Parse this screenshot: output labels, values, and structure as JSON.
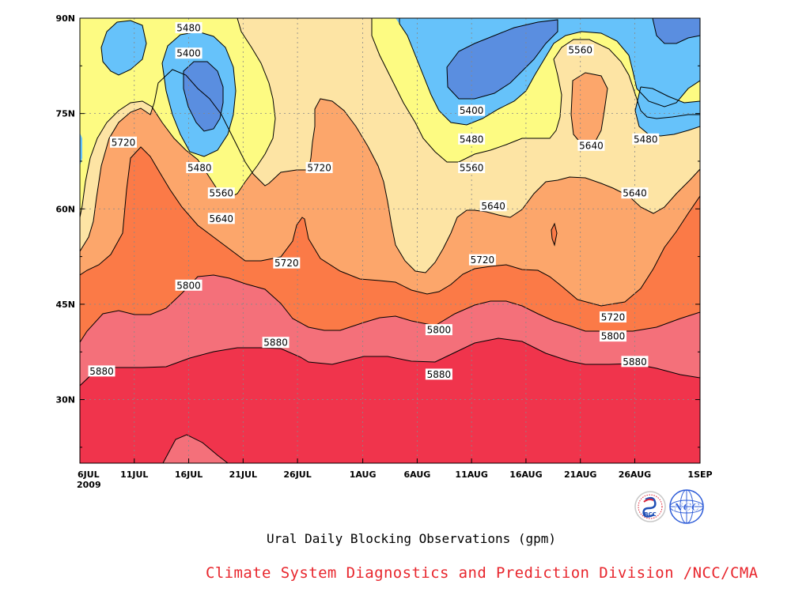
{
  "chart_data": {
    "type": "contour",
    "title": "Ural Daily Blocking Observations (gpm)",
    "x_ticks": [
      "6JUL",
      "11JUL",
      "16JUL",
      "21JUL",
      "26JUL",
      "1AUG",
      "6AUG",
      "11AUG",
      "16AUG",
      "21AUG",
      "26AUG",
      "1SEP"
    ],
    "x_sub_label": "2009",
    "x_range": [
      "2009-07-06",
      "2009-09-01"
    ],
    "y_ticks": [
      "30N",
      "45N",
      "60N",
      "75N",
      "90N"
    ],
    "y_range": [
      20,
      90
    ],
    "contour_levels": [
      5400,
      5480,
      5560,
      5640,
      5720,
      5800,
      5880
    ],
    "colors": {
      "below_5400": "#5a8ee0",
      "5400_5480": "#66c2fa",
      "5480_5560": "#fdfb82",
      "5560_5640": "#fde4a4",
      "5640_5720": "#fca66b",
      "5720_5800": "#fb7a47",
      "5800_5880": "#f4707a",
      "above_5880": "#f0344c"
    },
    "contour_labels": [
      {
        "text": "5480",
        "x": "2009-07-16",
        "y": 88.5
      },
      {
        "text": "5400",
        "x": "2009-07-16",
        "y": 84.5
      },
      {
        "text": "5720",
        "x": "2009-07-10",
        "y": 70.5
      },
      {
        "text": "5480",
        "x": "2009-07-17",
        "y": 66.5
      },
      {
        "text": "5560",
        "x": "2009-07-19",
        "y": 62.5
      },
      {
        "text": "5640",
        "x": "2009-07-19",
        "y": 58.5
      },
      {
        "text": "5720",
        "x": "2009-07-28",
        "y": 66.5
      },
      {
        "text": "5720",
        "x": "2009-07-25",
        "y": 51.5
      },
      {
        "text": "5800",
        "x": "2009-07-16",
        "y": 48.0
      },
      {
        "text": "5880",
        "x": "2009-07-24",
        "y": 39.0
      },
      {
        "text": "5880",
        "x": "2009-07-08",
        "y": 34.5
      },
      {
        "text": "5400",
        "x": "2009-08-11",
        "y": 75.5
      },
      {
        "text": "5480",
        "x": "2009-08-11",
        "y": 71.0
      },
      {
        "text": "5560",
        "x": "2009-08-11",
        "y": 66.5
      },
      {
        "text": "5640",
        "x": "2009-08-13",
        "y": 60.5
      },
      {
        "text": "5720",
        "x": "2009-08-12",
        "y": 52.0
      },
      {
        "text": "5800",
        "x": "2009-08-08",
        "y": 41.0
      },
      {
        "text": "5880",
        "x": "2009-08-08",
        "y": 34.0
      },
      {
        "text": "5560",
        "x": "2009-08-21",
        "y": 85.0
      },
      {
        "text": "5640",
        "x": "2009-08-22",
        "y": 70.0
      },
      {
        "text": "5480",
        "x": "2009-08-27",
        "y": 71.0
      },
      {
        "text": "5640",
        "x": "2009-08-26",
        "y": 62.5
      },
      {
        "text": "5720",
        "x": "2009-08-24",
        "y": 43.0
      },
      {
        "text": "5800",
        "x": "2009-08-24",
        "y": 40.0
      },
      {
        "text": "5880",
        "x": "2009-08-26",
        "y": 36.0
      }
    ]
  },
  "title": "Ural Daily Blocking Observations (gpm)",
  "credit": "Climate System Diagnostics and Prediction Division /NCC/CMA",
  "logos": [
    {
      "name": "bcc-logo",
      "text": "BCC"
    },
    {
      "name": "ncc-logo",
      "text": "NCC"
    }
  ]
}
